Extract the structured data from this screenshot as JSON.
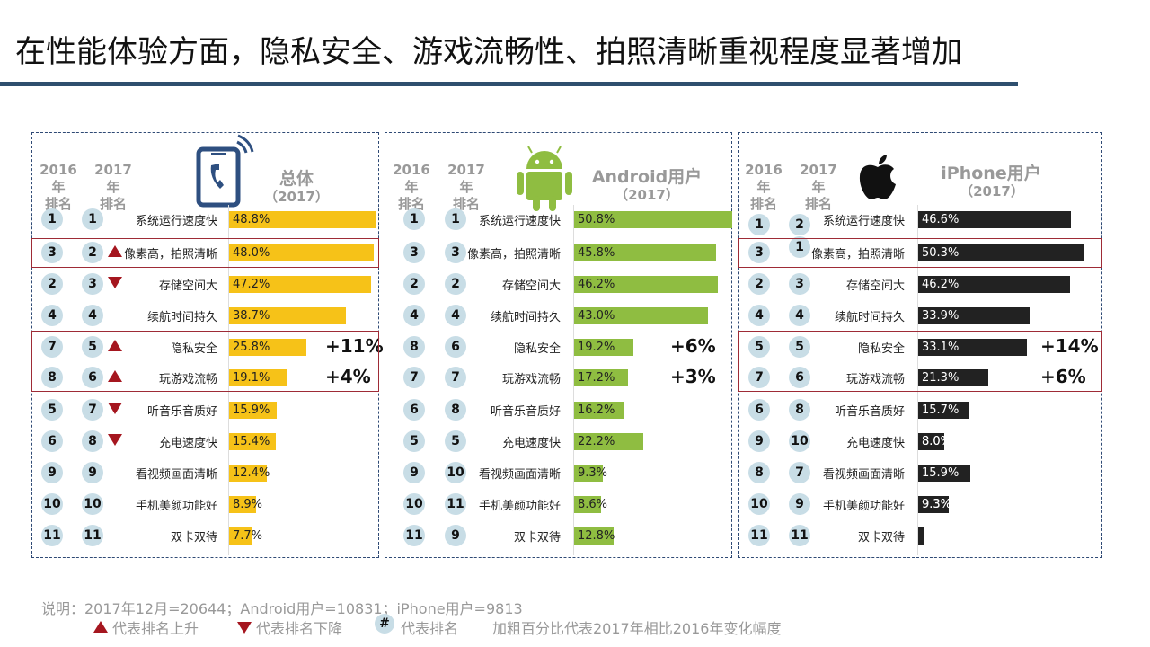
{
  "title": "在性能体验方面，隐私安全、游戏流畅性、拍照清晰重视程度显著增加",
  "headers": {
    "y2016": "2016年",
    "y2017": "2017年",
    "rank": "排名"
  },
  "colors": {
    "total_bar": "#f6c218",
    "android_bar": "#8fbd41",
    "iphone_bar": "#222222",
    "arrow": "#a5161f",
    "rank_circle": "#c8dde6",
    "title_bar": "#2e4f6e"
  },
  "notes": {
    "line1": "说明：2017年12月=20644；Android用户=10831；iPhone用户=9813",
    "up": "代表排名上升",
    "down": "代表排名下降",
    "hash": "#",
    "rank": "代表排名",
    "bold": "加粗百分比代表2017年相比2016年变化幅度"
  },
  "chart_data": [
    {
      "type": "bar",
      "title": "总体",
      "subtitle": "（2017）",
      "icon": "phone-icon",
      "categories": [
        "系统运行速度快",
        "像素高，拍照清晰",
        "存储空间大",
        "续航时间持久",
        "隐私安全",
        "玩游戏流畅",
        "听音乐音质好",
        "充电速度快",
        "看视频画面清晰",
        "手机美颜功能好",
        "双卡双待"
      ],
      "values": [
        48.8,
        48.0,
        47.2,
        38.7,
        25.8,
        19.1,
        15.9,
        15.4,
        12.4,
        8.9,
        7.7
      ],
      "value_labels": [
        "48.8%",
        "48.0%",
        "47.2%",
        "38.7%",
        "25.8%",
        "19.1%",
        "15.9%",
        "15.4%",
        "12.4%",
        "8.9%",
        "7.7%"
      ],
      "rank_2016": [
        1,
        3,
        2,
        4,
        7,
        8,
        5,
        6,
        9,
        10,
        11
      ],
      "rank_2017": [
        1,
        2,
        3,
        4,
        5,
        6,
        7,
        8,
        9,
        10,
        11
      ],
      "arrows": [
        "",
        "up",
        "down",
        "",
        "up",
        "up",
        "down",
        "down",
        "",
        "",
        ""
      ],
      "deltas": [
        "",
        "",
        "",
        "",
        "+11%",
        "+4%",
        "",
        "",
        "",
        "",
        ""
      ]
    },
    {
      "type": "bar",
      "title": "Android用户",
      "subtitle": "（2017）",
      "icon": "android-icon",
      "categories": [
        "系统运行速度快",
        "像素高，拍照清晰",
        "存储空间大",
        "续航时间持久",
        "隐私安全",
        "玩游戏流畅",
        "听音乐音质好",
        "充电速度快",
        "看视频画面清晰",
        "手机美颜功能好",
        "双卡双待"
      ],
      "values": [
        50.8,
        45.8,
        46.2,
        43.0,
        19.2,
        17.2,
        16.2,
        22.2,
        9.3,
        8.6,
        12.8
      ],
      "value_labels": [
        "50.8%",
        "45.8%",
        "46.2%",
        "43.0%",
        "19.2%",
        "17.2%",
        "16.2%",
        "22.2%",
        "9.3%",
        "8.6%",
        "12.8%"
      ],
      "rank_2016": [
        1,
        3,
        2,
        4,
        8,
        7,
        6,
        5,
        9,
        10,
        11
      ],
      "rank_2017": [
        1,
        3,
        2,
        4,
        6,
        7,
        8,
        5,
        10,
        11,
        9
      ],
      "arrows": [
        "",
        "",
        "",
        "",
        "",
        "",
        "",
        "",
        "",
        "",
        ""
      ],
      "deltas": [
        "",
        "",
        "",
        "",
        "+6%",
        "+3%",
        "",
        "",
        "",
        "",
        ""
      ]
    },
    {
      "type": "bar",
      "title": "iPhone用户",
      "subtitle": "（2017）",
      "icon": "apple-icon",
      "categories": [
        "系统运行速度快",
        "像素高，拍照清晰",
        "存储空间大",
        "续航时间持久",
        "隐私安全",
        "玩游戏流畅",
        "听音乐音质好",
        "充电速度快",
        "看视频画面清晰",
        "手机美颜功能好",
        "双卡双待"
      ],
      "values": [
        46.6,
        50.3,
        46.2,
        33.9,
        33.1,
        21.3,
        15.7,
        8.0,
        15.9,
        9.3,
        2.0
      ],
      "value_labels": [
        "46.6%",
        "50.3%",
        "46.2%",
        "33.9%",
        "33.1%",
        "21.3%",
        "15.7%",
        "8.0%",
        "15.9%",
        "9.3%",
        ""
      ],
      "rank_2016": [
        1,
        3,
        2,
        4,
        5,
        7,
        6,
        9,
        8,
        10,
        11
      ],
      "rank_2017": [
        2,
        1,
        3,
        4,
        5,
        6,
        8,
        10,
        7,
        9,
        11
      ],
      "arrows": [
        "",
        "",
        "",
        "",
        "",
        "",
        "",
        "",
        "",
        "",
        ""
      ],
      "deltas": [
        "",
        "",
        "",
        "",
        "+14%",
        "+6%",
        "",
        "",
        "",
        "",
        ""
      ]
    }
  ]
}
